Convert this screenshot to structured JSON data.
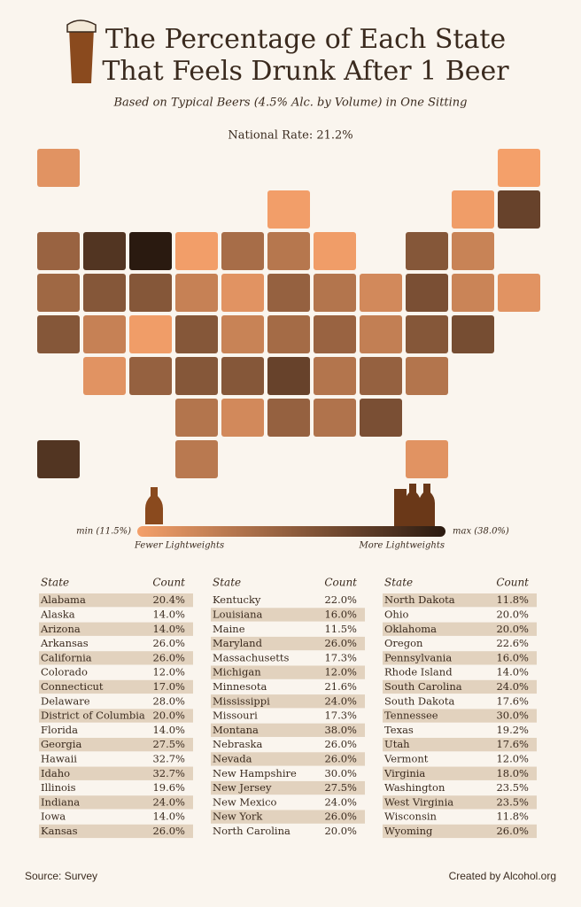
{
  "header": {
    "title_lines": [
      "The Percentage of Each State",
      "That Feels Drunk After 1 Beer"
    ],
    "subtitle": "Based on Typical Beers (4.5% Alc. by Volume) in One Sitting",
    "national_rate": "National Rate: 21.2%"
  },
  "legend": {
    "min_label": "min (11.5%)",
    "max_label": "max (38.0%)",
    "low_caption": "Fewer Lightweights",
    "high_caption": "More Lightweights"
  },
  "table": {
    "header": [
      "State",
      "Count"
    ],
    "rows": [
      [
        "Alabama",
        "20.4%"
      ],
      [
        "Alaska",
        "14.0%"
      ],
      [
        "Arizona",
        "14.0%"
      ],
      [
        "Arkansas",
        "26.0%"
      ],
      [
        "California",
        "26.0%"
      ],
      [
        "Colorado",
        "12.0%"
      ],
      [
        "Connecticut",
        "17.0%"
      ],
      [
        "Delaware",
        "28.0%"
      ],
      [
        "District of Columbia",
        "20.0%"
      ],
      [
        "Florida",
        "14.0%"
      ],
      [
        "Georgia",
        "27.5%"
      ],
      [
        "Hawaii",
        "32.7%"
      ],
      [
        "Idaho",
        "32.7%"
      ],
      [
        "Illinois",
        "19.6%"
      ],
      [
        "Indiana",
        "24.0%"
      ],
      [
        "Iowa",
        "14.0%"
      ],
      [
        "Kansas",
        "26.0%"
      ],
      [
        "Kentucky",
        "22.0%"
      ],
      [
        "Louisiana",
        "16.0%"
      ],
      [
        "Maine",
        "11.5%"
      ],
      [
        "Maryland",
        "26.0%"
      ],
      [
        "Massachusetts",
        "17.3%"
      ],
      [
        "Michigan",
        "12.0%"
      ],
      [
        "Minnesota",
        "21.6%"
      ],
      [
        "Mississippi",
        "24.0%"
      ],
      [
        "Missouri",
        "17.3%"
      ],
      [
        "Montana",
        "38.0%"
      ],
      [
        "Nebraska",
        "26.0%"
      ],
      [
        "Nevada",
        "26.0%"
      ],
      [
        "New Hampshire",
        "30.0%"
      ],
      [
        "New Jersey",
        "27.5%"
      ],
      [
        "New Mexico",
        "24.0%"
      ],
      [
        "New York",
        "26.0%"
      ],
      [
        "North Carolina",
        "20.0%"
      ],
      [
        "North Dakota",
        "11.8%"
      ],
      [
        "Ohio",
        "20.0%"
      ],
      [
        "Oklahoma",
        "20.0%"
      ],
      [
        "Oregon",
        "22.6%"
      ],
      [
        "Pennsylvania",
        "16.0%"
      ],
      [
        "Rhode Island",
        "14.0%"
      ],
      [
        "South Carolina",
        "24.0%"
      ],
      [
        "South Dakota",
        "17.6%"
      ],
      [
        "Tennessee",
        "30.0%"
      ],
      [
        "Texas",
        "19.2%"
      ],
      [
        "Utah",
        "17.6%"
      ],
      [
        "Vermont",
        "12.0%"
      ],
      [
        "Virginia",
        "18.0%"
      ],
      [
        "Washington",
        "23.5%"
      ],
      [
        "West Virginia",
        "23.5%"
      ],
      [
        "Wisconsin",
        "11.8%"
      ],
      [
        "Wyoming",
        "26.0%"
      ]
    ]
  },
  "footer": {
    "source": "Source: Survey",
    "credit": "Created by Alcohol.org"
  }
}
